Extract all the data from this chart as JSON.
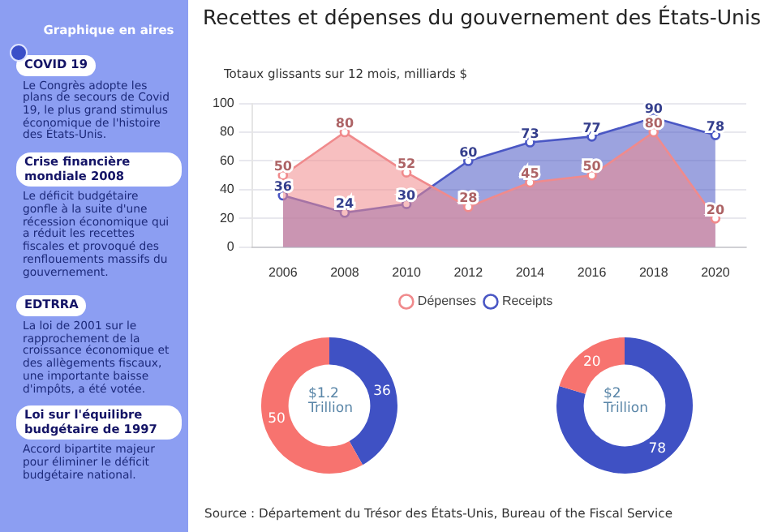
{
  "chart_data": [
    {
      "type": "other",
      "title": "Graphique en aires",
      "annotations": [
        "COVID 19",
        "Le Congrès adopte les plans de secours de Covid 19, le plus grand stimulus économique de l'histoire des États-Unis.",
        "Crise financière mondiale 2008",
        "Le déficit budgétaire gonfle à la suite d'une récession économique qui a réduit les recettes fiscales et provoqué des renflouements massifs du gouvernement.",
        "EDTRRA",
        "La loi de 2001 sur le rapprochement de la croissance économique et des allègements fiscaux, une importante baisse d'impôts, a été votée.",
        "Loi sur l'équilibre budgétaire de 1997",
        "Accord bipartite majeur pour éliminer le déficit budgétaire national."
      ]
    },
    {
      "type": "area",
      "title": "Recettes et dépenses du gouvernement des États-Unis",
      "subtitle": "Totaux glissants sur 12 mois, milliards $",
      "categories": [
        "2006",
        "2008",
        "2010",
        "2012",
        "2014",
        "2016",
        "2018",
        "2020"
      ],
      "series": [
        {
          "name": "Dépenses",
          "color": "#f08a8c",
          "values": [
            50,
            80,
            52,
            28,
            45,
            50,
            80,
            20
          ]
        },
        {
          "name": "Receipts",
          "color": "#4a57c4",
          "values": [
            36,
            24,
            30,
            60,
            73,
            77,
            90,
            78
          ]
        }
      ],
      "ylim": [
        0,
        100
      ],
      "yticks": [
        0,
        20,
        40,
        60,
        80,
        100
      ],
      "grid": "y",
      "legend": "bottom",
      "marker": "circle",
      "data_labels": true,
      "annotations": [
        "Source : Département du Trésor des États-Unis, Bureau of the Fiscal Service"
      ]
    },
    {
      "type": "donut",
      "categories": [
        null,
        null
      ],
      "values": [
        36,
        50
      ],
      "colors": [
        "#3f51c4",
        "#f7736f"
      ],
      "data_labels": true,
      "annotations": [
        "$1.2 Trillion"
      ]
    },
    {
      "type": "donut",
      "categories": [
        null,
        null
      ],
      "values": [
        78,
        20
      ],
      "colors": [
        "#3f51c4",
        "#f7736f"
      ],
      "data_labels": true,
      "annotations": [
        "$2 Trillion"
      ]
    }
  ]
}
